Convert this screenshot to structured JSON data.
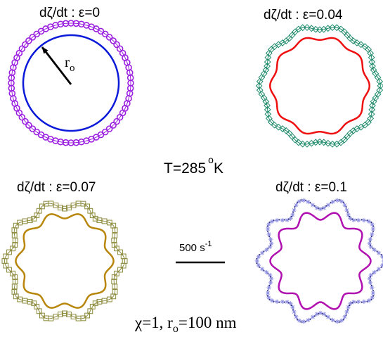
{
  "panels": [
    {
      "title": "dζ/dt : ε=0",
      "epsilon": 0,
      "outer_color": "#9b1fe0",
      "inner_color": "#0a1ad8",
      "outer_marker": "circle-icon"
    },
    {
      "title": "dζ/dt : ε=0.04",
      "epsilon": 0.04,
      "outer_color": "#1e8a6a",
      "inner_color": "#ee1010",
      "outer_marker": "diamond-icon"
    },
    {
      "title": "dζ/dt : ε=0.07",
      "epsilon": 0.07,
      "outer_color": "#8c8a3c",
      "inner_color": "#b8860b",
      "outer_marker": "square-icon"
    },
    {
      "title": "dζ/dt : ε=0.1",
      "epsilon": 0.1,
      "outer_color": "#8f8fe0",
      "inner_color": "#b010b0",
      "outer_marker": "star-icon"
    }
  ],
  "radius_label": {
    "main": "r",
    "sub": "o"
  },
  "temperature": {
    "prefix": "T=285",
    "degree": "o",
    "unit": "K"
  },
  "scale_bar": {
    "base": "500 s",
    "exp": "-1"
  },
  "caption": {
    "part1": "χ=1, r",
    "sub": "o",
    "part2": "=100 nm"
  },
  "lobes": 10
}
